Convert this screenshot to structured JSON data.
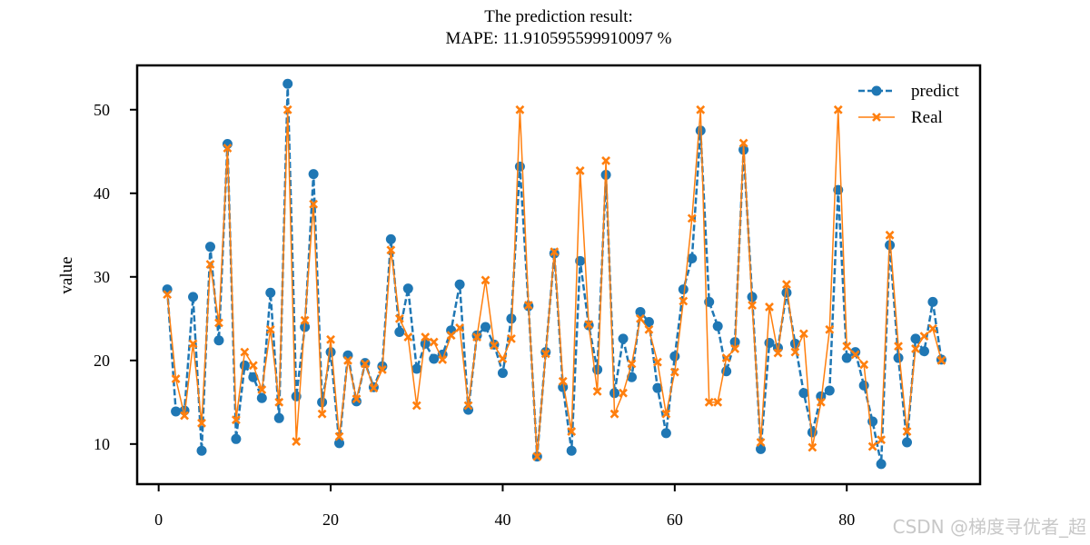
{
  "chart_data": {
    "type": "line",
    "title_line1": "The prediction result:",
    "title_line2": "MAPE: 11.910595599910097 %",
    "xlabel": "",
    "ylabel": "value",
    "xlim": [
      -2.5,
      95.5
    ],
    "ylim": [
      5.2,
      55.3
    ],
    "xticks": [
      0,
      20,
      40,
      60,
      80
    ],
    "yticks": [
      10,
      20,
      30,
      40,
      50
    ],
    "grid": false,
    "legend_position": "top-right",
    "x": [
      1,
      2,
      3,
      4,
      5,
      6,
      7,
      8,
      9,
      10,
      11,
      12,
      13,
      14,
      15,
      16,
      17,
      18,
      19,
      20,
      21,
      22,
      23,
      24,
      25,
      26,
      27,
      28,
      29,
      30,
      31,
      32,
      33,
      34,
      35,
      36,
      37,
      38,
      39,
      40,
      41,
      42,
      43,
      44,
      45,
      46,
      47,
      48,
      49,
      50,
      51,
      52,
      53,
      54,
      55,
      56,
      57,
      58,
      59,
      60,
      61,
      62,
      63,
      64,
      65,
      66,
      67,
      68,
      69,
      70,
      71,
      72,
      73,
      74,
      75,
      76,
      77,
      78,
      79,
      80,
      81,
      82,
      83,
      84,
      85,
      86,
      87,
      88,
      89,
      90,
      91
    ],
    "series": [
      {
        "name": "predict",
        "color": "#1f77b4",
        "style": "dashed",
        "marker": "circle",
        "values": [
          28.5,
          13.9,
          14.0,
          27.6,
          9.2,
          33.6,
          22.4,
          45.9,
          10.6,
          19.4,
          18.0,
          15.5,
          28.1,
          13.1,
          53.1,
          15.7,
          24.0,
          42.3,
          15.0,
          21.0,
          10.1,
          20.6,
          15.1,
          19.7,
          16.8,
          19.3,
          34.5,
          23.4,
          28.6,
          19.0,
          22.0,
          20.2,
          20.7,
          23.6,
          29.1,
          14.1,
          23.0,
          24.0,
          21.9,
          18.5,
          25.0,
          43.2,
          26.5,
          8.5,
          21.0,
          32.8,
          16.8,
          9.2,
          31.9,
          24.2,
          18.9,
          42.2,
          16.1,
          22.6,
          18.0,
          25.8,
          24.6,
          16.7,
          11.3,
          20.5,
          28.5,
          32.2,
          47.5,
          27.0,
          24.1,
          18.7,
          22.2,
          45.2,
          27.6,
          9.4,
          22.1,
          21.5,
          28.1,
          22.0,
          16.1,
          11.4,
          15.7,
          16.4,
          40.4,
          20.3,
          21.0,
          17.0,
          12.7,
          7.6,
          33.8,
          20.3,
          10.2,
          22.6,
          21.1,
          27.0,
          20.1
        ]
      },
      {
        "name": "Real",
        "color": "#ff7f0e",
        "style": "solid",
        "marker": "x",
        "values": [
          27.9,
          17.8,
          13.4,
          22.0,
          12.5,
          31.5,
          24.5,
          45.4,
          12.9,
          21.0,
          19.4,
          16.5,
          23.7,
          15.0,
          50.0,
          10.3,
          24.8,
          38.7,
          13.6,
          22.5,
          10.9,
          20.0,
          15.4,
          19.6,
          16.7,
          18.9,
          33.2,
          25.0,
          22.8,
          14.6,
          22.8,
          22.2,
          20.1,
          23.0,
          23.9,
          14.6,
          22.8,
          29.6,
          21.8,
          20.2,
          22.6,
          50.0,
          26.6,
          8.5,
          20.8,
          33.0,
          17.5,
          11.5,
          42.7,
          24.3,
          16.3,
          43.9,
          13.6,
          16.1,
          19.6,
          25.0,
          23.7,
          19.8,
          13.6,
          18.6,
          27.1,
          37.0,
          50.0,
          15.0,
          15.0,
          20.3,
          21.4,
          46.0,
          26.6,
          10.2,
          26.4,
          20.9,
          29.1,
          21.0,
          23.2,
          9.6,
          15.0,
          23.7,
          50.0,
          21.7,
          20.7,
          19.5,
          9.7,
          10.5,
          35.0,
          21.7,
          11.5,
          21.4,
          22.9,
          23.8,
          20.0
        ]
      }
    ]
  },
  "watermark": "CSDN @梯度寻优者_超"
}
